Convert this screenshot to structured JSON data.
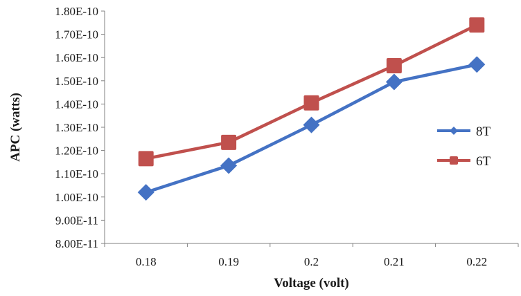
{
  "chart_data": {
    "type": "line",
    "title": "",
    "xlabel": "Voltage (volt)",
    "ylabel": "APC (watts)",
    "categories": [
      "0.18",
      "0.19",
      "0.2",
      "0.21",
      "0.22"
    ],
    "y_ticks": [
      "8.00E-11",
      "9.00E-11",
      "1.00E-10",
      "1.10E-10",
      "1.20E-10",
      "1.30E-10",
      "1.40E-10",
      "1.50E-10",
      "1.60E-10",
      "1.70E-10",
      "1.80E-10"
    ],
    "ylim": [
      8e-11,
      1.8e-10
    ],
    "grid": false,
    "legend_position": "right",
    "series": [
      {
        "name": "8T",
        "marker": "diamond",
        "color": "#4472C4",
        "values": [
          1.02e-10,
          1.135e-10,
          1.31e-10,
          1.495e-10,
          1.57e-10
        ]
      },
      {
        "name": "6T",
        "marker": "square",
        "color": "#C0504D",
        "values": [
          1.165e-10,
          1.235e-10,
          1.405e-10,
          1.565e-10,
          1.74e-10
        ]
      }
    ]
  }
}
